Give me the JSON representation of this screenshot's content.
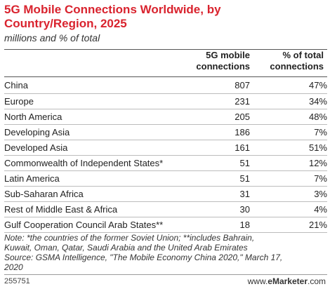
{
  "chart_data": {
    "type": "table",
    "title": "5G Mobile Connections Worldwide, by Country/Region, 2025",
    "subtitle": "millions and % of total",
    "columns": [
      "5G mobile connections",
      "% of total connections"
    ],
    "rows": [
      {
        "name": "China",
        "connections": "807",
        "share": "47%"
      },
      {
        "name": "Europe",
        "connections": "231",
        "share": "34%"
      },
      {
        "name": "North America",
        "connections": "205",
        "share": "48%"
      },
      {
        "name": "Developing Asia",
        "connections": "186",
        "share": "7%"
      },
      {
        "name": "Developed Asia",
        "connections": "161",
        "share": "51%"
      },
      {
        "name": "Commonwealth of Independent States*",
        "connections": "51",
        "share": "12%"
      },
      {
        "name": "Latin America",
        "connections": "51",
        "share": "7%"
      },
      {
        "name": "Sub-Saharan Africa",
        "connections": "31",
        "share": "3%"
      },
      {
        "name": "Rest of Middle East & Africa",
        "connections": "30",
        "share": "4%"
      },
      {
        "name": "Gulf Cooperation Council Arab States**",
        "connections": "18",
        "share": "21%"
      }
    ]
  },
  "header": {
    "col1_line1": "5G mobile",
    "col1_line2": "connections",
    "col2_line1": "% of total",
    "col2_line2": "connections"
  },
  "note": {
    "line1": "Note: *the countries of the former Soviet Union; **includes Bahrain,",
    "line2": "Kuwait, Oman, Qatar, Saudi Arabia and the United Arab Emirates",
    "line3": "Source: GSMA Intelligence, \"The Mobile Economy China 2020,\" March 17,",
    "line4": "2020"
  },
  "footer": {
    "id": "255751",
    "brand_prefix": "www.",
    "brand_name": "eMarketer",
    "brand_suffix": ".com"
  },
  "colors": {
    "title": "#d9232e",
    "text": "#222222",
    "rule": "#9a9a9a"
  }
}
